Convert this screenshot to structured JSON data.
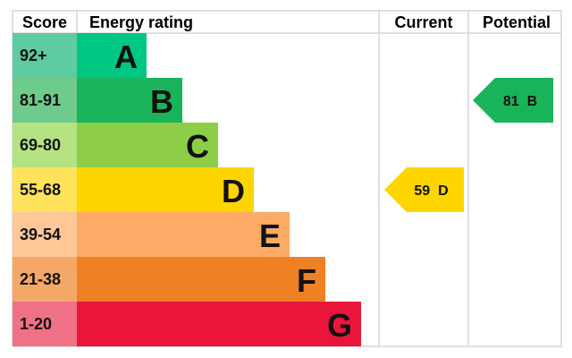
{
  "chart_data": {
    "type": "bar",
    "headers": {
      "score": "Score",
      "rating": "Energy rating",
      "current": "Current",
      "potential": "Potential"
    },
    "bands": [
      {
        "letter": "A",
        "range": "92+",
        "color": "#00c781",
        "light": "#5ecba3"
      },
      {
        "letter": "B",
        "range": "81-91",
        "color": "#19b459",
        "light": "#6fcb8c"
      },
      {
        "letter": "C",
        "range": "69-80",
        "color": "#8dce46",
        "light": "#b5e283"
      },
      {
        "letter": "D",
        "range": "55-68",
        "color": "#ffd500",
        "light": "#ffe35c"
      },
      {
        "letter": "E",
        "range": "39-54",
        "color": "#fcaa65",
        "light": "#fdc797"
      },
      {
        "letter": "F",
        "range": "21-38",
        "color": "#ef8023",
        "light": "#f4a867"
      },
      {
        "letter": "G",
        "range": "1-20",
        "color": "#e9153b",
        "light": "#f07085"
      }
    ],
    "current": {
      "value": 59,
      "band": "D",
      "label": "59  D"
    },
    "potential": {
      "value": 81,
      "band": "B",
      "label": "81  B"
    }
  }
}
